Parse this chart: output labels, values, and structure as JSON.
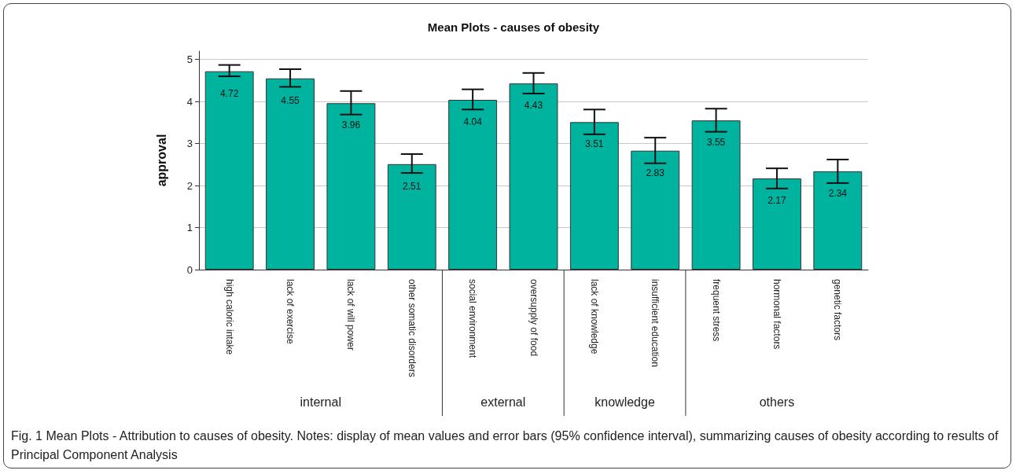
{
  "chart_data": {
    "type": "bar",
    "title": "Mean Plots - causes of obesity",
    "ylabel": "approval",
    "categories": [
      "high caloric intake",
      "lack of exercise",
      "lack of will power",
      "other somatic disorders",
      "social environment",
      "oversupply of food",
      "lack of knowledge",
      "insufficient education",
      "frequent stress",
      "hormonal factors",
      "genetic factors"
    ],
    "values": [
      4.72,
      4.55,
      3.96,
      2.51,
      4.04,
      4.43,
      3.51,
      2.83,
      3.55,
      2.17,
      2.34
    ],
    "errors": [
      [
        4.6,
        4.87
      ],
      [
        4.35,
        4.77
      ],
      [
        3.69,
        4.25
      ],
      [
        2.3,
        2.75
      ],
      [
        3.81,
        4.29
      ],
      [
        4.19,
        4.68
      ],
      [
        3.22,
        3.81
      ],
      [
        2.53,
        3.14
      ],
      [
        3.28,
        3.83
      ],
      [
        1.93,
        2.41
      ],
      [
        2.06,
        2.62
      ]
    ],
    "color": "#00b39f",
    "data_labels": true,
    "ylim": [
      0,
      5.2
    ],
    "yticks": [
      0,
      1,
      2,
      3,
      4,
      5
    ],
    "grid": "y",
    "annotations": [
      "internal",
      "external",
      "knowledge",
      "others",
      "Fig. 1 Mean Plots - Attribution to causes of obesity. Notes: display of mean values and error bars (95% confidence interval), summarizing causes of obesity according to results of Principal Component Analysis"
    ]
  }
}
